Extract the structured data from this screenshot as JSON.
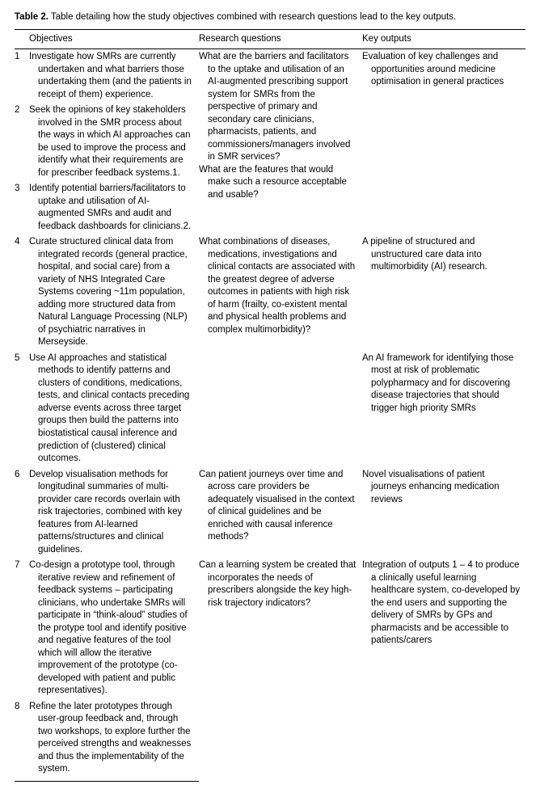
{
  "caption_bold": "Table 2.",
  "caption_rest": "Table detailing how the study objectives combined with research questions lead to the key outputs.",
  "headers": {
    "col1": "",
    "col2": "Objectives",
    "col3": "Research questions",
    "col4": "Key outputs"
  },
  "groups": [
    {
      "objectives": [
        {
          "n": "1",
          "text": "Investigate how SMRs are currently undertaken and what barriers those undertaking them (and the patients in receipt of them) experience."
        },
        {
          "n": "2",
          "text": "Seek the opinions of key stakeholders involved in the SMR process about the ways in which AI approaches can be used to improve the process and identify what their requirements are for prescriber feedback systems.1."
        },
        {
          "n": "3",
          "text": "Identify potential barriers/facilitators to uptake and utilisation of AI-augmented SMRs and audit and feedback dashboards for clinicians.2."
        }
      ],
      "research": [
        "What are the barriers and facilitators to the uptake and utilisation of an AI-augmented prescribing support system for SMRs from the perspective of primary and secondary care clinicians, pharmacists, patients, and commissioners/managers involved in SMR services?",
        "What are the features that would make such a resource acceptable and usable?"
      ],
      "outputs": [
        "Evaluation of key challenges and opportunities around medicine optimisation in general practices"
      ]
    },
    {
      "objectives": [
        {
          "n": "4",
          "text": "Curate structured clinical data from integrated records (general practice, hospital, and social care) from a variety of NHS Integrated Care Systems covering ~11m population, adding more structured data from Natural Language Processing (NLP) of psychiatric narratives in Merseyside."
        }
      ],
      "research": [
        "What combinations of diseases, medications, investigations and clinical contacts are associated with the greatest degree of adverse outcomes in patients with high risk of harm (frailty, co-existent mental and physical health problems and complex multimorbidity)?"
      ],
      "outputs": [
        "A pipeline of structured and unstructured care data into multimorbidity (AI) research."
      ]
    },
    {
      "objectives": [
        {
          "n": "5",
          "text": "Use AI approaches and statistical methods to identify patterns and clusters of conditions, medications, tests, and clinical contacts preceding adverse events across three target groups then build the patterns into biostatistical causal inference and prediction of (clustered) clinical outcomes."
        }
      ],
      "research": [],
      "outputs": [
        "An AI framework for identifying those most at risk of problematic polypharmacy and for discovering disease trajectories that should trigger high priority SMRs"
      ]
    },
    {
      "objectives": [
        {
          "n": "6",
          "text": "Develop visualisation methods for longitudinal summaries of multi-provider care records overlain with risk trajectories, combined with key features from AI-learned patterns/structures and clinical guidelines."
        }
      ],
      "research": [
        "Can patient journeys over time and across care providers be adequately visualised in the context of clinical guidelines and be enriched with causal inference methods?"
      ],
      "outputs": [
        "Novel visualisations of patient journeys enhancing medication reviews"
      ]
    },
    {
      "objectives": [
        {
          "n": "7",
          "text": "Co-design a prototype tool, through iterative review and refinement of feedback systems – participating clinicians, who undertake SMRs will participate in “think-aloud” studies of the protype tool and identify positive and negative features of the tool which will allow the iterative improvement of the prototype (co-developed with patient and public representatives)."
        },
        {
          "n": "8",
          "text": "Refine the later prototypes through user-group feedback and, through two workshops, to explore further the perceived strengths and weaknesses and thus the implementability of the system."
        }
      ],
      "research": [
        "Can a learning system be created that incorporates the needs of prescribers alongside the key high-risk trajectory indicators?"
      ],
      "outputs": [
        "Integration of outputs 1 – 4 to produce a clinically useful learning healthcare system, co-developed by the end users and supporting the delivery of SMRs by GPs and pharmacists and be accessible to patients/carers"
      ]
    }
  ]
}
